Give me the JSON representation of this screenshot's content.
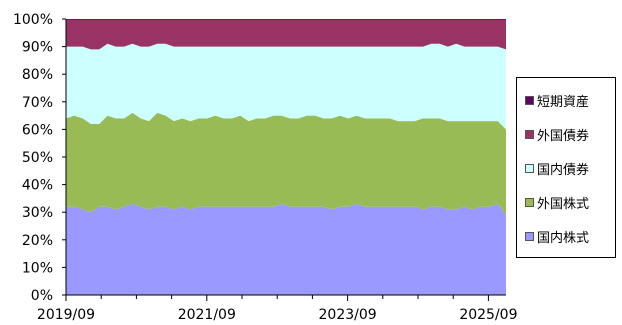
{
  "chart_data": {
    "type": "area",
    "stacked": true,
    "percent": true,
    "x_tick_labels": [
      "2019/09",
      "2021/09",
      "2023/09",
      "2025/09"
    ],
    "x_start": "2019/09",
    "x_end": "2025/12",
    "y_tick_labels": [
      "0%",
      "10%",
      "20%",
      "30%",
      "40%",
      "50%",
      "60%",
      "70%",
      "80%",
      "90%",
      "100%"
    ],
    "ylim": [
      0,
      100
    ],
    "legend_position": "right",
    "series": [
      {
        "name": "国内株式",
        "color": "#9999ff",
        "values": [
          32,
          32,
          31,
          30,
          32,
          32,
          31,
          32,
          33,
          32,
          31,
          32,
          32,
          31,
          32,
          31,
          32,
          32,
          32,
          32,
          32,
          32,
          32,
          32,
          32,
          32,
          33,
          32,
          32,
          32,
          32,
          32,
          31,
          32,
          32,
          33,
          32,
          32,
          32,
          32,
          32,
          32,
          32,
          31,
          32,
          32,
          31,
          31,
          32,
          31,
          32,
          32,
          33,
          29
        ]
      },
      {
        "name": "外国株式",
        "color": "#99bb55",
        "values": [
          32,
          33,
          33,
          32,
          30,
          33,
          33,
          32,
          33,
          32,
          32,
          34,
          33,
          32,
          32,
          32,
          32,
          32,
          33,
          32,
          32,
          33,
          31,
          32,
          32,
          33,
          32,
          32,
          32,
          33,
          33,
          32,
          33,
          33,
          32,
          32,
          32,
          32,
          32,
          32,
          31,
          31,
          31,
          33,
          32,
          32,
          32,
          32,
          31,
          32,
          31,
          31,
          30,
          31
        ]
      },
      {
        "name": "国内債券",
        "color": "#ccffff",
        "values": [
          26,
          25,
          26,
          27,
          27,
          26,
          26,
          26,
          25,
          26,
          27,
          25,
          26,
          27,
          26,
          27,
          26,
          26,
          25,
          26,
          26,
          25,
          27,
          26,
          26,
          25,
          25,
          26,
          26,
          25,
          25,
          26,
          26,
          25,
          26,
          25,
          26,
          26,
          26,
          26,
          27,
          27,
          27,
          26,
          27,
          27,
          27,
          28,
          27,
          27,
          27,
          27,
          27,
          29
        ]
      },
      {
        "name": "外国債券",
        "color": "#993366",
        "values": [
          10,
          10,
          10,
          11,
          11,
          9,
          10,
          10,
          9,
          10,
          10,
          9,
          9,
          10,
          10,
          10,
          10,
          10,
          10,
          10,
          10,
          10,
          10,
          10,
          10,
          10,
          10,
          10,
          10,
          10,
          10,
          10,
          10,
          10,
          10,
          10,
          10,
          10,
          10,
          10,
          10,
          10,
          10,
          10,
          9,
          9,
          10,
          9,
          10,
          10,
          10,
          10,
          10,
          11
        ]
      },
      {
        "name": "短期資産",
        "color": "#660066",
        "values": [
          0,
          0,
          0,
          0,
          0,
          0,
          0,
          0,
          0,
          0,
          0,
          0,
          0,
          0,
          0,
          0,
          0,
          0,
          0,
          0,
          0,
          0,
          0,
          0,
          0,
          0,
          0,
          0,
          0,
          0,
          0,
          0,
          0,
          0,
          0,
          0,
          0,
          0,
          0,
          0,
          0,
          0,
          0,
          0,
          0,
          0,
          0,
          0,
          0,
          0,
          0,
          0,
          0,
          0
        ]
      }
    ],
    "legend_order": [
      "短期資産",
      "外国債券",
      "国内債券",
      "外国株式",
      "国内株式"
    ]
  }
}
